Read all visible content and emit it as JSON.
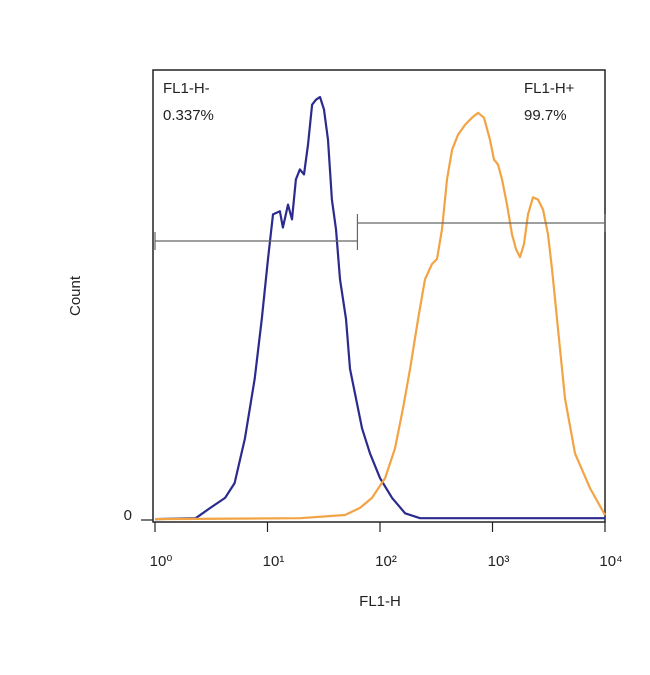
{
  "chart_data": {
    "type": "line",
    "x_label": "FL1-H",
    "y_label": "Count",
    "log_x": true,
    "xlim": [
      1,
      10000
    ],
    "xticks": [
      {
        "value": 1,
        "label": "10⁰"
      },
      {
        "value": 10,
        "label": "10¹"
      },
      {
        "value": 100,
        "label": "10²"
      },
      {
        "value": 1000,
        "label": "10³"
      },
      {
        "value": 10000,
        "label": "10⁴"
      }
    ],
    "ylim": [
      0,
      100
    ],
    "yticks": [
      0
    ],
    "series": [
      {
        "color": "#2b2b8e",
        "x": [
          1,
          2.3,
          3.1,
          4.2,
          5.1,
          6.3,
          7.7,
          8.9,
          10.1,
          11.2,
          12.9,
          13.7,
          15.2,
          16.5,
          17.9,
          19.4,
          21.1,
          22.9,
          24.9,
          27,
          29.3,
          31.8,
          34.5,
          37.4,
          40.6,
          44.1,
          49.9,
          54.1,
          61.2,
          69.2,
          81.5,
          100,
          128,
          167,
          227,
          10000
        ],
        "values": [
          0.2,
          0.4,
          2.7,
          4.9,
          8.2,
          18.1,
          31.4,
          44.7,
          58,
          67.9,
          68.6,
          65,
          70.1,
          66.8,
          75.7,
          77.9,
          76.8,
          83.4,
          92.3,
          93.4,
          94,
          91.2,
          84.5,
          71.2,
          64.6,
          53.5,
          44.7,
          33.6,
          27,
          20.4,
          14.8,
          9.3,
          4.9,
          1.5,
          0.4,
          0.4
        ]
      },
      {
        "color": "#f2a444",
        "x": [
          1,
          19.4,
          48.9,
          66.4,
          84.9,
          111,
          136,
          160,
          185,
          218,
          251,
          290,
          321,
          356,
          394,
          437,
          494,
          570,
          657,
          743,
          840,
          950,
          1031,
          1119,
          1215,
          1346,
          1490,
          1618,
          1756,
          1905,
          2069,
          2291,
          2537,
          2811,
          3114,
          3381,
          3820,
          4406,
          5412,
          7357,
          10000
        ],
        "values": [
          0.2,
          0.4,
          1.1,
          2.7,
          4.9,
          9.3,
          15.9,
          24.8,
          33.6,
          44.7,
          53.5,
          56.9,
          58,
          64.6,
          75.7,
          82.3,
          85.6,
          87.8,
          89.4,
          90.5,
          89.4,
          84.5,
          80.1,
          79,
          75.7,
          70.1,
          63.5,
          60.2,
          58.4,
          61.3,
          67.9,
          71.7,
          71.2,
          69,
          63.5,
          55.8,
          42.5,
          27,
          14.8,
          7.1,
          1.1
        ]
      }
    ],
    "gates": [
      {
        "label": "FL1-H-",
        "value": 0.337,
        "value_label": "0.337%",
        "xrange": [
          1,
          63
        ],
        "y": 62
      },
      {
        "label": "FL1-H+",
        "value": 99.7,
        "value_label": "99.7%",
        "xrange": [
          63,
          10000
        ],
        "y": 66
      }
    ]
  }
}
